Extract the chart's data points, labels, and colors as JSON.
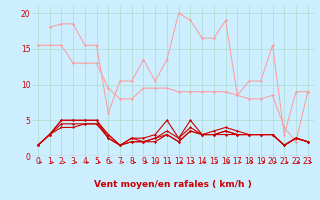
{
  "background_color": "#cceeff",
  "grid_color": "#aaddcc",
  "line_color_dark": "#cc0000",
  "line_color_light": "#ff9999",
  "xlabel": "Vent moyen/en rafales ( km/h )",
  "xlabel_color": "#cc0000",
  "xlim": [
    -0.5,
    23.5
  ],
  "ylim": [
    0,
    21
  ],
  "yticks": [
    0,
    5,
    10,
    15,
    20
  ],
  "xticks": [
    0,
    1,
    2,
    3,
    4,
    5,
    6,
    7,
    8,
    9,
    10,
    11,
    12,
    13,
    14,
    15,
    16,
    17,
    18,
    19,
    20,
    21,
    22,
    23
  ],
  "series_light1": {
    "x": [
      1,
      2,
      3,
      4,
      5,
      6,
      7,
      8,
      9,
      10,
      11,
      12,
      13,
      14,
      15,
      16,
      17,
      18,
      19,
      20,
      21,
      22,
      23
    ],
    "y": [
      18,
      18.5,
      18.5,
      15.5,
      15.5,
      6.0,
      10.5,
      10.5,
      13.5,
      10.5,
      13.5,
      20,
      19,
      16.5,
      16.5,
      19,
      8.5,
      10.5,
      10.5,
      15.5,
      3.0,
      9.0,
      9.0
    ]
  },
  "series_light2": {
    "x": [
      0,
      1,
      2,
      3,
      4,
      5,
      6,
      7,
      8,
      9,
      10,
      11,
      12,
      13,
      14,
      15,
      16,
      17,
      18,
      19,
      20,
      21,
      22,
      23
    ],
    "y": [
      15.5,
      15.5,
      15.5,
      13.0,
      13.0,
      13.0,
      9.5,
      8.0,
      8.0,
      9.5,
      9.5,
      9.5,
      9.0,
      9.0,
      9.0,
      9.0,
      9.0,
      8.5,
      8.0,
      8.0,
      8.5,
      4.0,
      2.0,
      9.0
    ]
  },
  "series_dark1": {
    "x": [
      0,
      1,
      2,
      3,
      4,
      5,
      6,
      7,
      8,
      9,
      10,
      11,
      12,
      13,
      14,
      15,
      16,
      17,
      18,
      19,
      20,
      21,
      22,
      23
    ],
    "y": [
      1.5,
      3.0,
      5.0,
      5.0,
      5.0,
      5.0,
      3.0,
      1.5,
      2.5,
      2.5,
      3.0,
      5.0,
      2.5,
      5.0,
      3.0,
      3.5,
      4.0,
      3.5,
      3.0,
      3.0,
      3.0,
      1.5,
      2.5,
      2.0
    ]
  },
  "series_dark2": {
    "x": [
      0,
      1,
      2,
      3,
      4,
      5,
      6,
      7,
      8,
      9,
      10,
      11,
      12,
      13,
      14,
      15,
      16,
      17,
      18,
      19,
      20,
      21,
      22,
      23
    ],
    "y": [
      1.5,
      3.0,
      4.0,
      4.0,
      4.5,
      4.5,
      2.5,
      1.5,
      2.0,
      2.0,
      2.5,
      3.0,
      2.0,
      3.5,
      3.0,
      3.0,
      3.0,
      3.0,
      3.0,
      3.0,
      3.0,
      1.5,
      2.5,
      2.0
    ]
  },
  "series_dark3": {
    "x": [
      0,
      1,
      2,
      3,
      4,
      5,
      6,
      7,
      8,
      9,
      10,
      11,
      12,
      13,
      14,
      15,
      16,
      17,
      18,
      19,
      20,
      21,
      22,
      23
    ],
    "y": [
      1.5,
      3.0,
      4.5,
      4.5,
      4.5,
      4.5,
      3.0,
      1.5,
      2.5,
      2.0,
      2.5,
      3.5,
      2.5,
      4.0,
      3.0,
      3.0,
      3.5,
      3.0,
      3.0,
      3.0,
      3.0,
      1.5,
      2.5,
      2.0
    ]
  },
  "series_dark4": {
    "x": [
      0,
      1,
      2,
      3,
      4,
      5,
      6,
      7,
      8,
      9,
      10,
      11,
      12,
      13,
      14,
      15,
      16,
      17,
      18,
      19,
      20,
      21,
      22,
      23
    ],
    "y": [
      1.5,
      3.0,
      5.0,
      5.0,
      5.0,
      5.0,
      2.5,
      1.5,
      2.0,
      2.0,
      2.0,
      3.0,
      2.0,
      3.5,
      3.0,
      3.0,
      3.5,
      3.0,
      3.0,
      3.0,
      3.0,
      1.5,
      2.5,
      2.0
    ]
  },
  "tick_fontsize": 5.5,
  "xlabel_fontsize": 6.5
}
